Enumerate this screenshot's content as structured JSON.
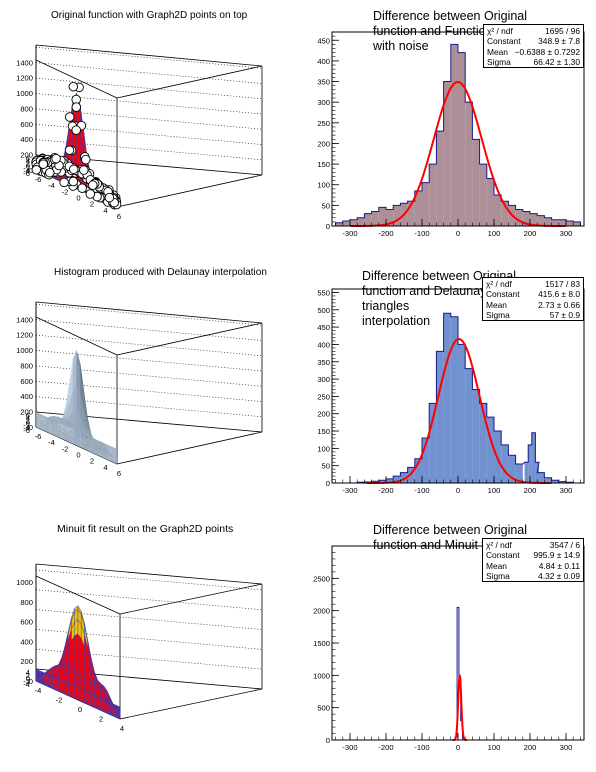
{
  "pads": [
    {
      "kind": "surface",
      "variant": "graph2d",
      "title": "Original function with Graph2D points on top",
      "zticks": [
        "0",
        "200",
        "400",
        "600",
        "800",
        "1000",
        "1200",
        "1400"
      ],
      "xticks": [
        "-6",
        "-4",
        "-2",
        "0",
        "2",
        "4",
        "6"
      ],
      "yticks": [
        "-6",
        "-4",
        "-2",
        "0",
        "2",
        "4",
        "6"
      ],
      "colors": {
        "surface": "#ff0000",
        "mesh": "#2b3cc4",
        "marker_fill": "#ffffff",
        "marker_edge": "#000000"
      }
    },
    {
      "kind": "hist",
      "title_lines": [
        "Difference between Original",
        "function and Function",
        "with noise"
      ],
      "stats": [
        {
          "label": "χ² / ndf",
          "value": "1695 / 96"
        },
        {
          "label": "Constant",
          "value": "348.9 ± 7.8"
        },
        {
          "label": "Mean",
          "value": "−0.6388 ± 0.7292"
        },
        {
          "label": "Sigma",
          "value": "66.42 ± 1.30"
        }
      ],
      "colors": {
        "fill": "#ad8f98",
        "line": "#1a1a8c",
        "fit": "#ff0000"
      }
    },
    {
      "kind": "surface",
      "variant": "delaunay",
      "title": "Histogram produced with Delaunay interpolation",
      "zticks": [
        "0",
        "200",
        "400",
        "600",
        "800",
        "1000",
        "1200",
        "1400"
      ],
      "xticks": [
        "-6",
        "-4",
        "-2",
        "0",
        "2",
        "4",
        "6"
      ],
      "yticks": [
        "-6",
        "-4",
        "-2",
        "0",
        "2",
        "4",
        "6"
      ],
      "colors": {
        "surface": "#8ea2b4",
        "shade": "#5c6e80"
      }
    },
    {
      "kind": "hist",
      "title_lines": [
        "Difference between Original",
        "function and Delaunay triangles",
        "interpolation"
      ],
      "stats": [
        {
          "label": "χ² / ndf",
          "value": "1517 / 83"
        },
        {
          "label": "Constant",
          "value": "415.6 ± 8.0"
        },
        {
          "label": "Mean",
          "value": "2.73 ± 0.66"
        },
        {
          "label": "Sigma",
          "value": "57 ± 0.9"
        }
      ],
      "colors": {
        "fill": "#7191cf",
        "line": "#1a1a8c",
        "fit": "#ff0000"
      }
    },
    {
      "kind": "surface",
      "variant": "minuit",
      "title": "Minuit fit result on the Graph2D points",
      "zticks": [
        "0",
        "200",
        "400",
        "600",
        "800",
        "1000"
      ],
      "xticks": [
        "-4",
        "-2",
        "0",
        "2",
        "4"
      ],
      "yticks": [
        "-4",
        "-2",
        "0",
        "2",
        "4"
      ],
      "colors": {
        "surface": "#ff0000",
        "mesh": "#2b3cc4",
        "peak": "#f2c200"
      }
    },
    {
      "kind": "hist",
      "title_lines": [
        "Difference between Original",
        "function and Minuit fit"
      ],
      "stats": [
        {
          "label": "χ² / ndf",
          "value": "3547 / 6"
        },
        {
          "label": "Constant",
          "value": "995.9 ± 14.9"
        },
        {
          "label": "Mean",
          "value": "4.84 ± 0.11"
        },
        {
          "label": "Sigma",
          "value": "4.32 ± 0.09"
        }
      ],
      "colors": {
        "fill": "#ffffff",
        "line": "#1a1a8c",
        "fit": "#ff0000"
      }
    }
  ],
  "chart_data": [
    {
      "type": "surface",
      "title": "Original function with Graph2D points on top",
      "xlim": [
        -6,
        6
      ],
      "ylim": [
        -6,
        6
      ],
      "zlim": [
        0,
        1400
      ],
      "note_series": [
        "surface",
        "graph2d points"
      ]
    },
    {
      "type": "bar",
      "title": "Difference between Original function and Function with noise",
      "xlim": [
        -350,
        350
      ],
      "ylim": [
        0,
        470
      ],
      "yticks": [
        0,
        50,
        100,
        150,
        200,
        250,
        300,
        350,
        400,
        450
      ],
      "xticks": [
        -300,
        -200,
        -100,
        0,
        100,
        200,
        300
      ],
      "x": [
        -330,
        -310,
        -290,
        -270,
        -250,
        -230,
        -210,
        -190,
        -170,
        -150,
        -130,
        -110,
        -90,
        -70,
        -50,
        -30,
        -10,
        10,
        30,
        50,
        70,
        90,
        110,
        130,
        150,
        170,
        190,
        210,
        230,
        250,
        270,
        290,
        310,
        330
      ],
      "values": [
        8,
        12,
        15,
        20,
        30,
        35,
        45,
        40,
        50,
        55,
        60,
        85,
        105,
        150,
        230,
        350,
        440,
        420,
        300,
        210,
        150,
        115,
        75,
        60,
        50,
        40,
        35,
        30,
        25,
        20,
        15,
        15,
        12,
        10
      ],
      "fit": {
        "function": "gaus",
        "constant": 348.9,
        "mean": -0.6388,
        "sigma": 66.42
      }
    },
    {
      "type": "surface",
      "title": "Histogram produced with Delaunay interpolation",
      "xlim": [
        -6,
        6
      ],
      "ylim": [
        -6,
        6
      ],
      "zlim": [
        0,
        1400
      ]
    },
    {
      "type": "bar",
      "title": "Difference between Original function and Delaunay triangles interpolation",
      "xlim": [
        -350,
        350
      ],
      "ylim": [
        0,
        560
      ],
      "yticks": [
        0,
        50,
        100,
        150,
        200,
        250,
        300,
        350,
        400,
        450,
        500,
        550
      ],
      "xticks": [
        -300,
        -200,
        -100,
        0,
        100,
        200,
        300
      ],
      "x": [
        -330,
        -310,
        -290,
        -270,
        -250,
        -230,
        -210,
        -190,
        -170,
        -150,
        -130,
        -110,
        -90,
        -70,
        -50,
        -30,
        -10,
        10,
        30,
        50,
        70,
        90,
        110,
        130,
        150,
        170,
        190,
        200,
        210,
        220,
        230,
        250,
        270,
        290,
        310,
        330
      ],
      "values": [
        0,
        0,
        0,
        2,
        3,
        5,
        8,
        12,
        20,
        30,
        45,
        70,
        130,
        230,
        380,
        490,
        480,
        400,
        330,
        270,
        230,
        190,
        150,
        110,
        80,
        55,
        60,
        110,
        145,
        60,
        30,
        15,
        8,
        4,
        2,
        0
      ],
      "fit": {
        "function": "gaus",
        "constant": 415.6,
        "mean": 2.73,
        "sigma": 57
      }
    },
    {
      "type": "surface",
      "title": "Minuit fit result on the Graph2D points",
      "xlim": [
        -5,
        5
      ],
      "ylim": [
        -5,
        5
      ],
      "zlim": [
        0,
        1100
      ]
    },
    {
      "type": "bar",
      "title": "Difference between Original function and Minuit fit",
      "xlim": [
        -350,
        350
      ],
      "ylim": [
        0,
        3000
      ],
      "yticks": [
        0,
        500,
        1000,
        1500,
        2000,
        2500
      ],
      "xticks": [
        -300,
        -200,
        -100,
        0,
        100,
        200,
        300
      ],
      "x": [
        -5,
        0,
        5,
        10,
        15
      ],
      "values": [
        50,
        2050,
        950,
        300,
        20
      ],
      "fit": {
        "function": "gaus",
        "constant": 995.9,
        "mean": 4.84,
        "sigma": 4.32
      }
    }
  ]
}
